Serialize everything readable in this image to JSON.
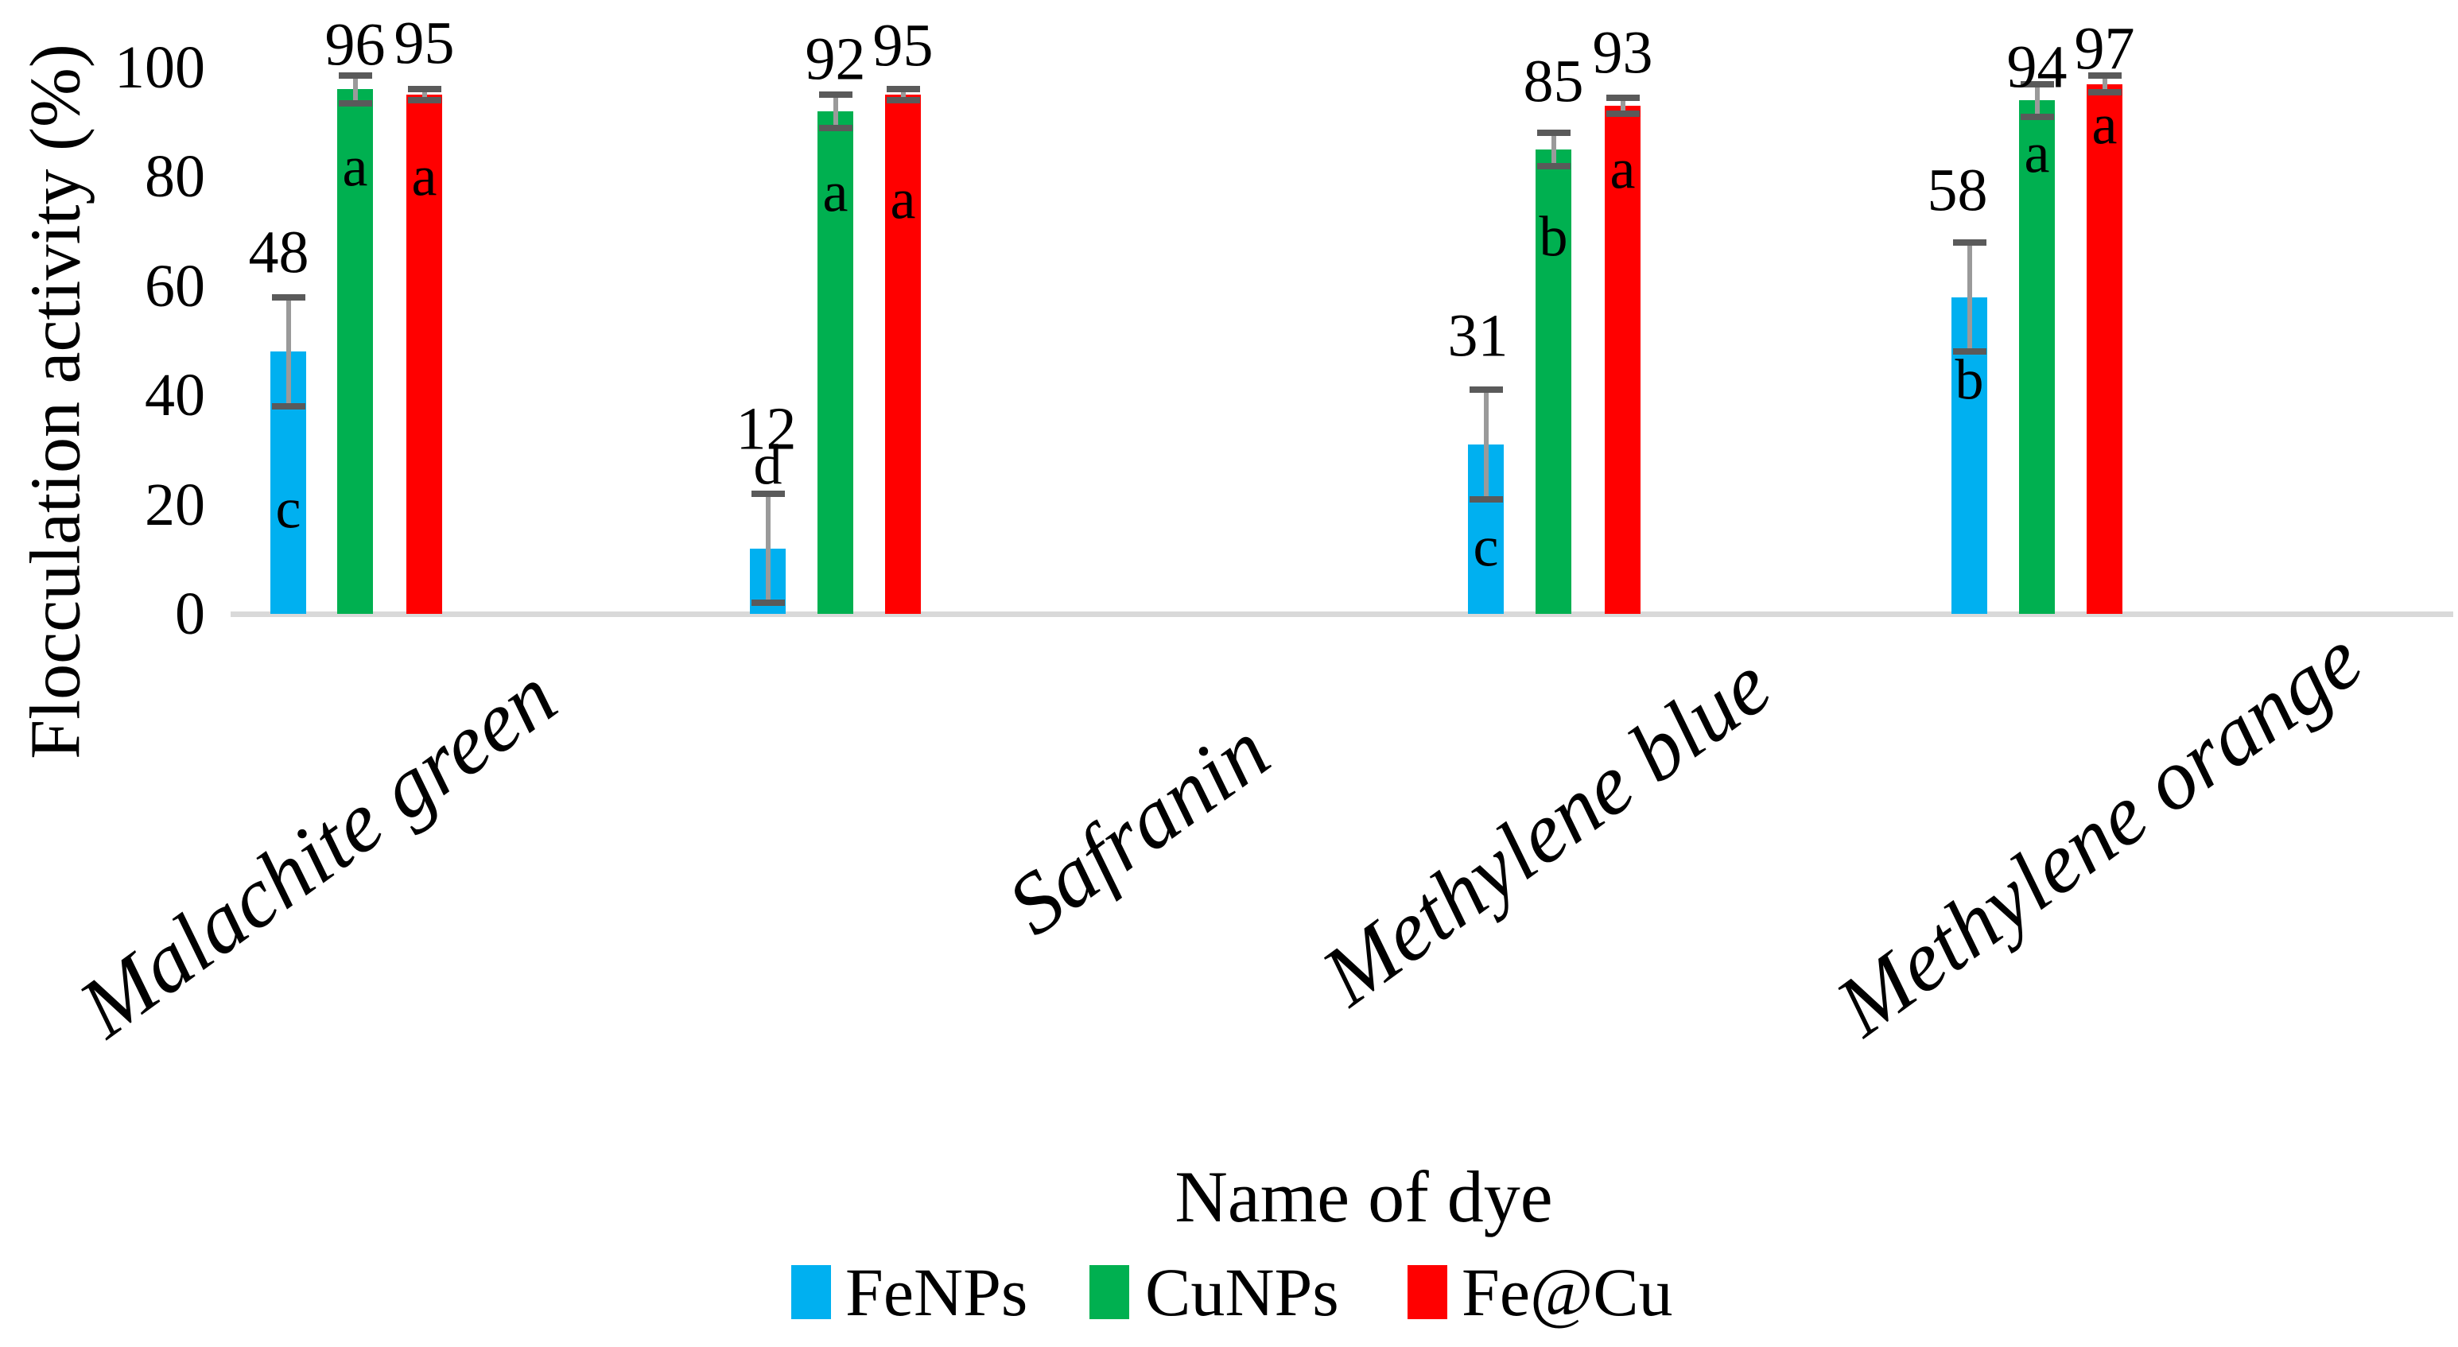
{
  "chart_data": {
    "type": "bar",
    "title": "",
    "xlabel": "Name of dye",
    "ylabel": "Flocculation activity (%)",
    "ylim": [
      0,
      100
    ],
    "yticks": [
      "0",
      "20",
      "40",
      "60",
      "80",
      "100"
    ],
    "grid": false,
    "legend_position": "bottom",
    "categories": [
      "Malachite green",
      "Safranin",
      "Methylene blue",
      "Methylene orange"
    ],
    "series": [
      {
        "name": "FeNPs",
        "color": "#00B0F0",
        "values": [
          48,
          12,
          31,
          58
        ],
        "errors": [
          10,
          10,
          10,
          10
        ],
        "letters": [
          "c",
          "d",
          "c",
          "b"
        ]
      },
      {
        "name": "CuNPs",
        "color": "#00B050",
        "values": [
          96,
          92,
          85,
          94
        ],
        "errors": [
          2.5,
          3,
          3,
          3
        ],
        "letters": [
          "a",
          "a",
          "b",
          "a"
        ]
      },
      {
        "name": "Fe@Cu",
        "color": "#FF0000",
        "values": [
          95,
          95,
          93,
          97
        ],
        "errors": [
          1,
          1,
          1.5,
          1.5
        ],
        "letters": [
          "a",
          "a",
          "a",
          "a"
        ]
      }
    ]
  },
  "colors": {
    "error_line": "#9a9a9a",
    "error_cap": "#5a5a5a",
    "axis_line": "#d9d9d9",
    "text": "#000000"
  }
}
